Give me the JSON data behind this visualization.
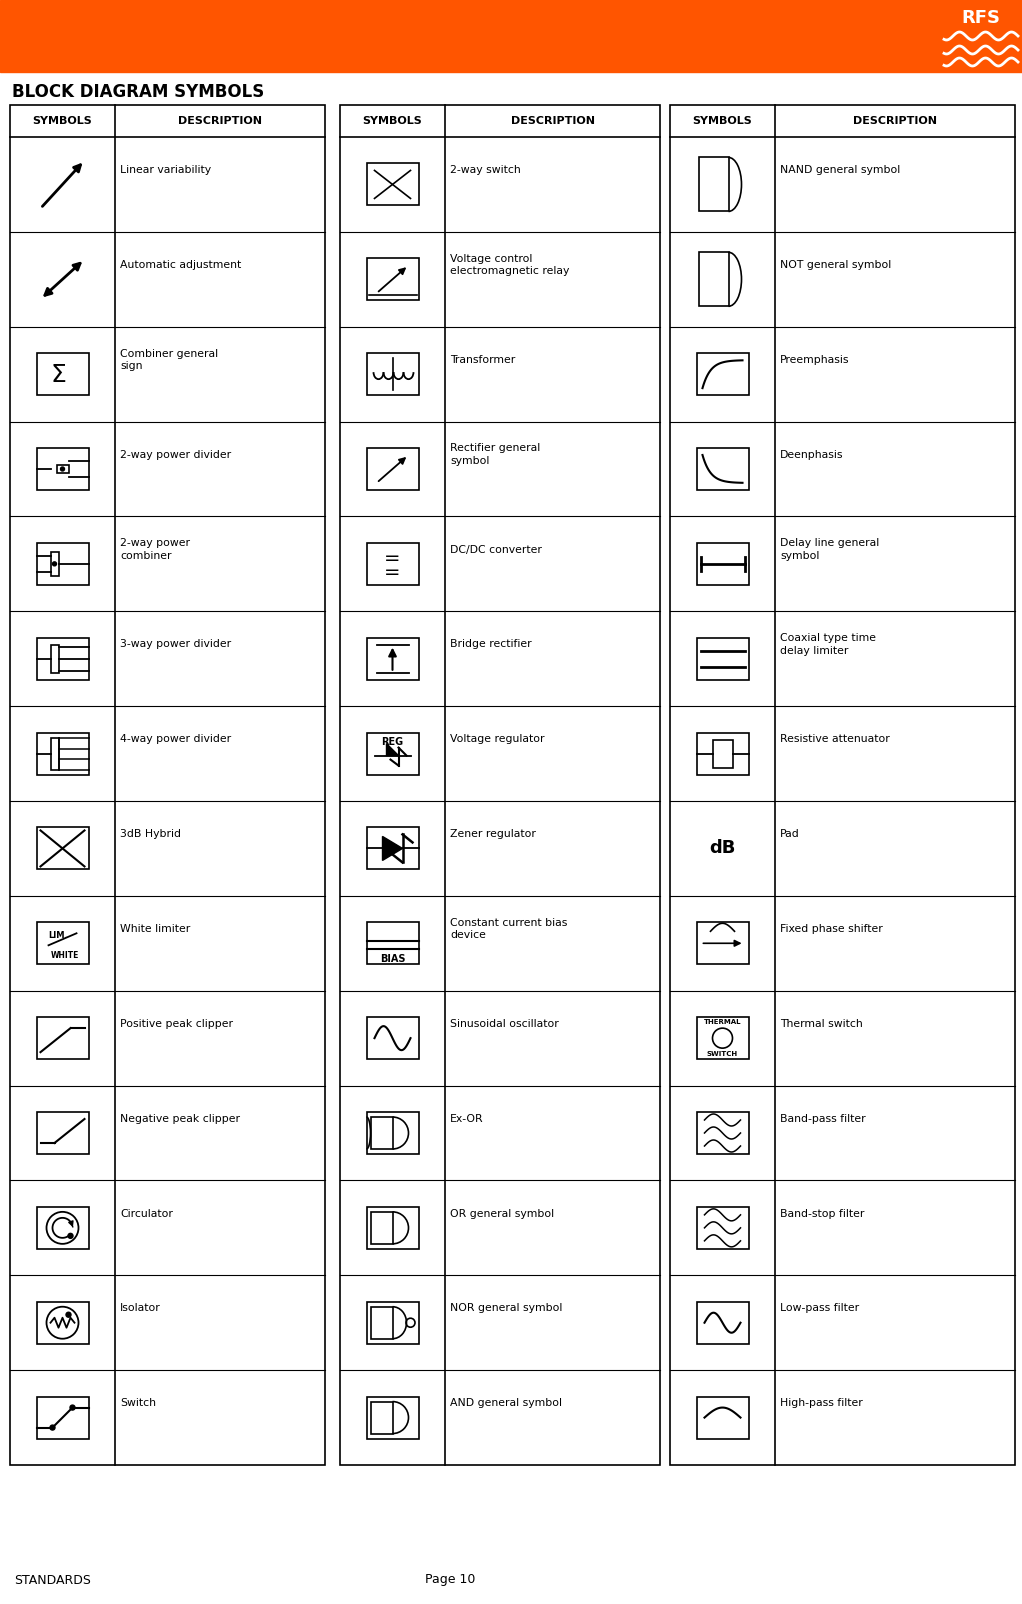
{
  "title": "BLOCK DIAGRAM SYMBOLS",
  "page_label": "STANDARDS",
  "page_number": "Page 10",
  "header_color": "#FF5500",
  "background_color": "#FFFFFF",
  "table_rows": [
    [
      "Linear variability",
      "2-way switch",
      "NAND general symbol"
    ],
    [
      "Automatic adjustment",
      "Voltage control\nelectromagnetic relay",
      "NOT general symbol"
    ],
    [
      "Combiner general\nsign",
      "Transformer",
      "Preemphasis"
    ],
    [
      "2-way power divider",
      "Rectifier general\nsymbol",
      "Deenphasis"
    ],
    [
      "2-way power\ncombiner",
      "DC/DC converter",
      "Delay line general\nsymbol"
    ],
    [
      "3-way power divider",
      "Bridge rectifier",
      "Coaxial type time\ndelay limiter"
    ],
    [
      "4-way power divider",
      "Voltage regulator",
      "Resistive attenuator"
    ],
    [
      "3dB Hybrid",
      "Zener regulator",
      "Pad"
    ],
    [
      "White limiter",
      "Constant current bias\ndevice",
      "Fixed phase shifter"
    ],
    [
      "Positive peak clipper",
      "Sinusoidal oscillator",
      "Thermal switch"
    ],
    [
      "Negative peak clipper",
      "Ex-OR",
      "Band-pass filter"
    ],
    [
      "Circulator",
      "OR general symbol",
      "Band-stop filter"
    ],
    [
      "Isolator",
      "NOR general symbol",
      "Low-pass filter"
    ],
    [
      "Switch",
      "AND general symbol",
      "High-pass filter"
    ]
  ],
  "orange": "#FF5500",
  "black": "#000000",
  "white": "#FFFFFF"
}
